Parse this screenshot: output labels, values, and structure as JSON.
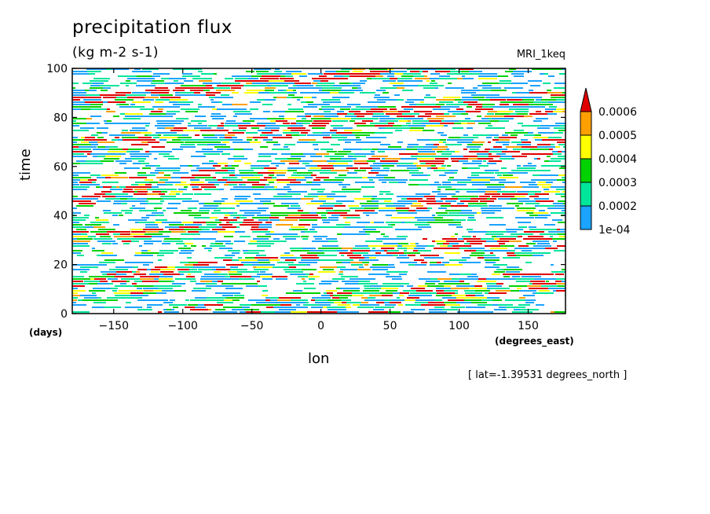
{
  "chart_data": {
    "type": "heatmap",
    "title": "precipitation flux",
    "subtitle": "(kg m-2 s-1)",
    "model_label": "MRI_1keq",
    "xlabel": "lon",
    "x_units": "(degrees_east)",
    "ylabel": "time",
    "y_units": "(days)",
    "footnote": "[ lat=-1.39531 degrees_north ]",
    "xlim": [
      -180,
      177
    ],
    "ylim": [
      0,
      100
    ],
    "x_ticks": [
      -150,
      -100,
      -50,
      0,
      50,
      100,
      150
    ],
    "y_ticks": [
      0,
      20,
      40,
      60,
      80,
      100
    ],
    "x_tick_labels": [
      "−150",
      "−100",
      "−50",
      "0",
      "50",
      "100",
      "150"
    ],
    "y_tick_labels": [
      "0",
      "20",
      "40",
      "60",
      "80",
      "100"
    ],
    "colorbar": {
      "levels": [
        "1e-04",
        "0.0002",
        "0.0003",
        "0.0004",
        "0.0005",
        "0.0006"
      ],
      "colors": [
        "#1aa3ff",
        "#00e69a",
        "#00d200",
        "#ffff00",
        "#ffa000",
        "#e00000"
      ],
      "extend": "max"
    },
    "pattern": "eastward-propagating precipitation streaks across the full longitude range (slope ~ +40 deg lon per day)"
  }
}
